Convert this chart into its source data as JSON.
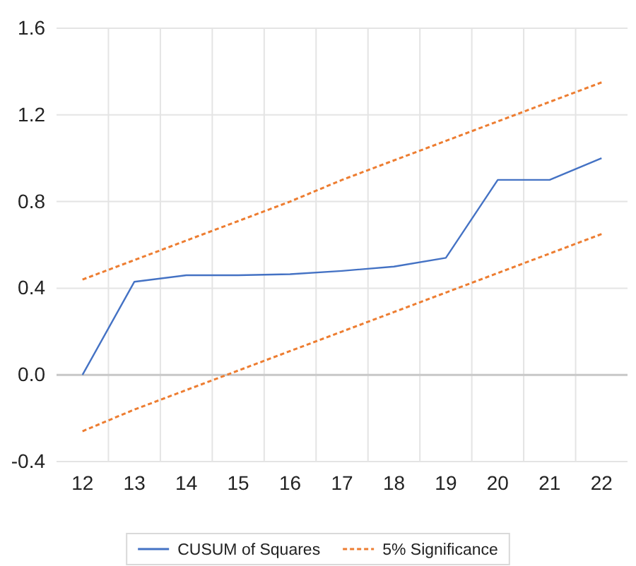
{
  "chart_data": {
    "type": "line",
    "categories": [
      "12",
      "13",
      "14",
      "15",
      "16",
      "17",
      "18",
      "19",
      "20",
      "21",
      "22"
    ],
    "series": [
      {
        "name": "CUSUM of Squares",
        "color": "#4472c4",
        "line_style": "solid",
        "values": [
          0,
          0.43,
          0.46,
          0.46,
          0.465,
          0.48,
          0.5,
          0.54,
          0.9,
          0.9,
          1.0
        ]
      },
      {
        "name": "5% Significance",
        "color": "#ed7d31",
        "line_style": "dashed",
        "values": [
          0.44,
          0.53,
          0.62,
          0.71,
          0.8,
          0.9,
          0.99,
          1.08,
          1.17,
          1.26,
          1.35
        ]
      },
      {
        "color": "#ed7d31",
        "line_style": "dashed",
        "values": [
          -0.26,
          -0.16,
          -0.07,
          0.02,
          0.11,
          0.2,
          0.29,
          0.38,
          0.47,
          0.56,
          0.65
        ]
      }
    ],
    "ylim": [
      -0.4,
      1.6
    ],
    "yticks": [
      {
        "value": -0.4,
        "label": "-0.4"
      },
      {
        "value": 0,
        "label": "0.0"
      },
      0.4,
      0.8,
      1.2,
      1.6
    ],
    "grid": true,
    "legend": "bottom",
    "marker": "none"
  }
}
